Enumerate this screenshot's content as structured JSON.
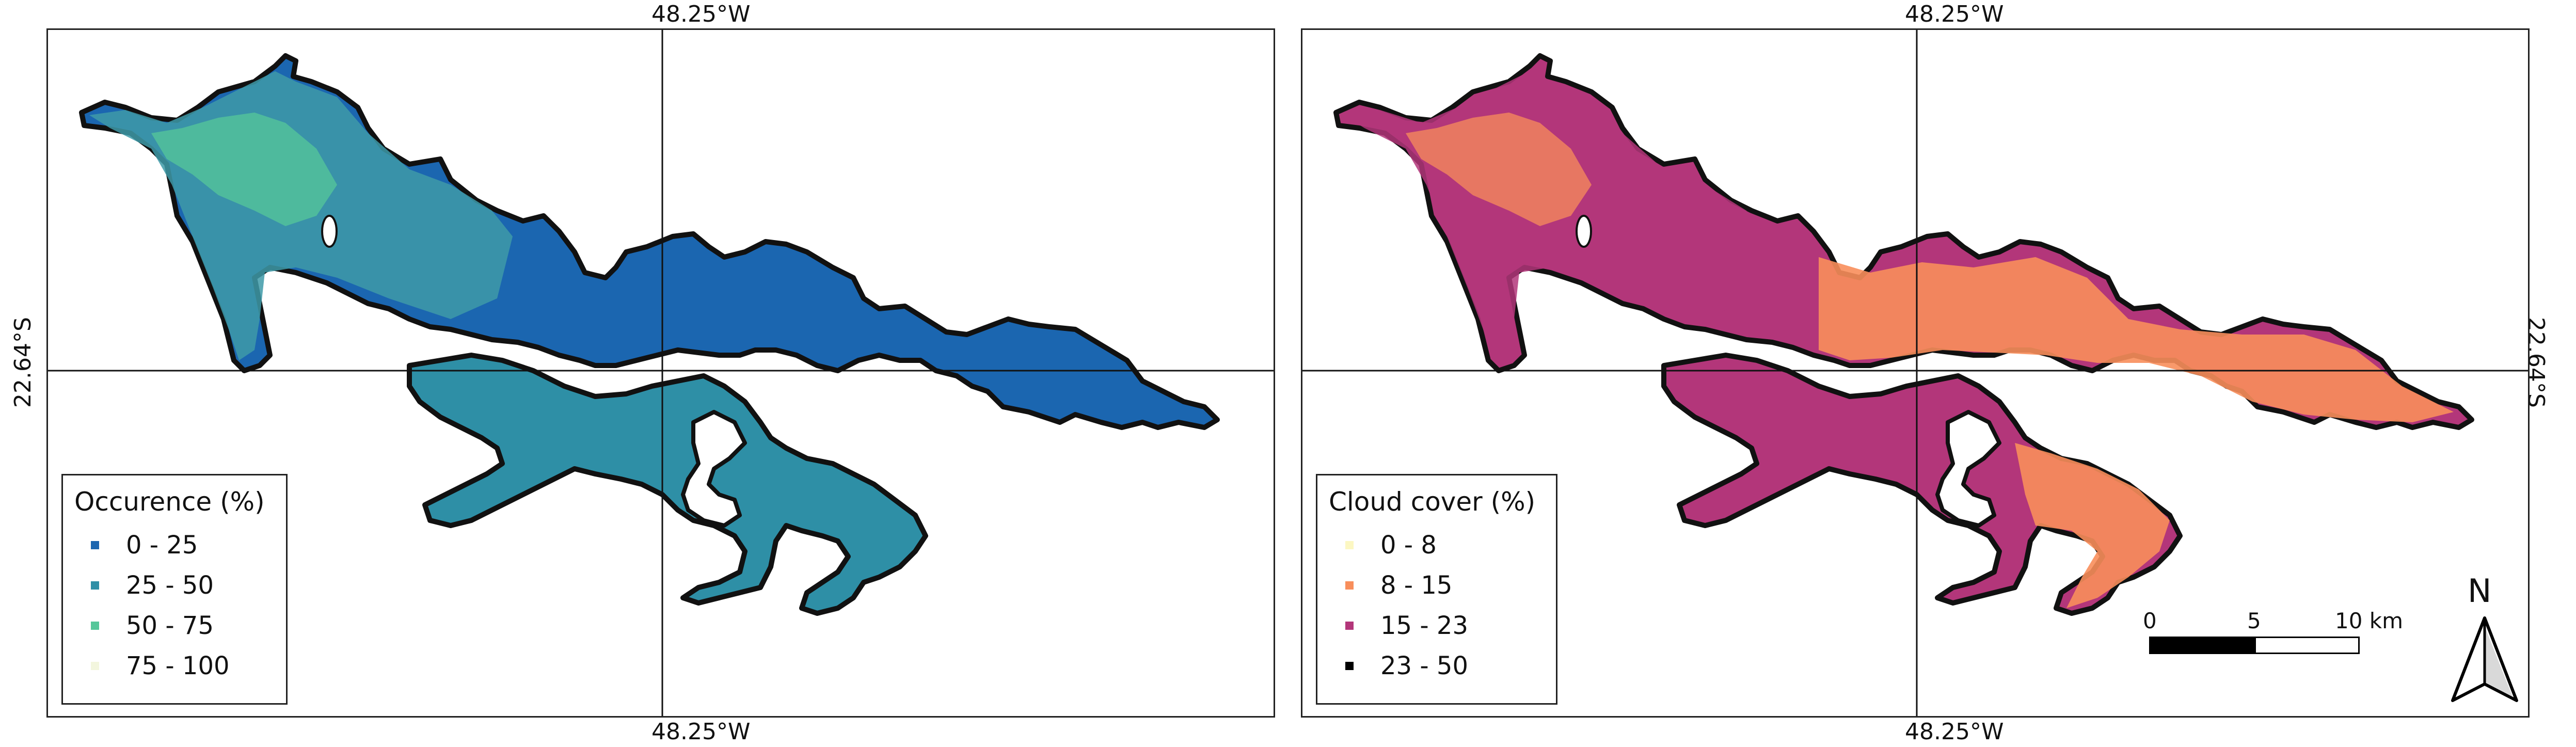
{
  "coordinates": {
    "longitude_label": "48.25°W",
    "latitude_label": "22.64°S"
  },
  "panels": [
    {
      "id": "occurrence",
      "legend_title": "Occurence (%)",
      "classes": [
        {
          "label": "0 - 25",
          "color": "#1b66b0"
        },
        {
          "label": "25 - 50",
          "color": "#2e8fa6"
        },
        {
          "label": "50 - 75",
          "color": "#56c79a"
        },
        {
          "label": "75 - 100",
          "color": "#f3f6de"
        }
      ],
      "reservoir_fill": "#1b66b0",
      "upstream_fill": "#3e9aa8",
      "lower_arm_fill": "#2e8fa6",
      "highlight_fill": "#56c79a"
    },
    {
      "id": "cloud_cover",
      "legend_title": "Cloud cover (%)",
      "classes": [
        {
          "label": "0 - 8",
          "color": "#fcf7c2"
        },
        {
          "label": "8 - 15",
          "color": "#f88e5b"
        },
        {
          "label": "15 - 23",
          "color": "#b3367a"
        },
        {
          "label": "23 - 50",
          "color": "#000000"
        }
      ],
      "reservoir_fill": "#b3367a",
      "upstream_fill": "#b3367a",
      "lower_arm_fill": "#b3367a",
      "highlight_fill": "#f88e5b"
    }
  ],
  "scale_bar": {
    "labels": [
      "0",
      "5",
      "10 km"
    ]
  },
  "north_arrow": {
    "label": "N"
  }
}
